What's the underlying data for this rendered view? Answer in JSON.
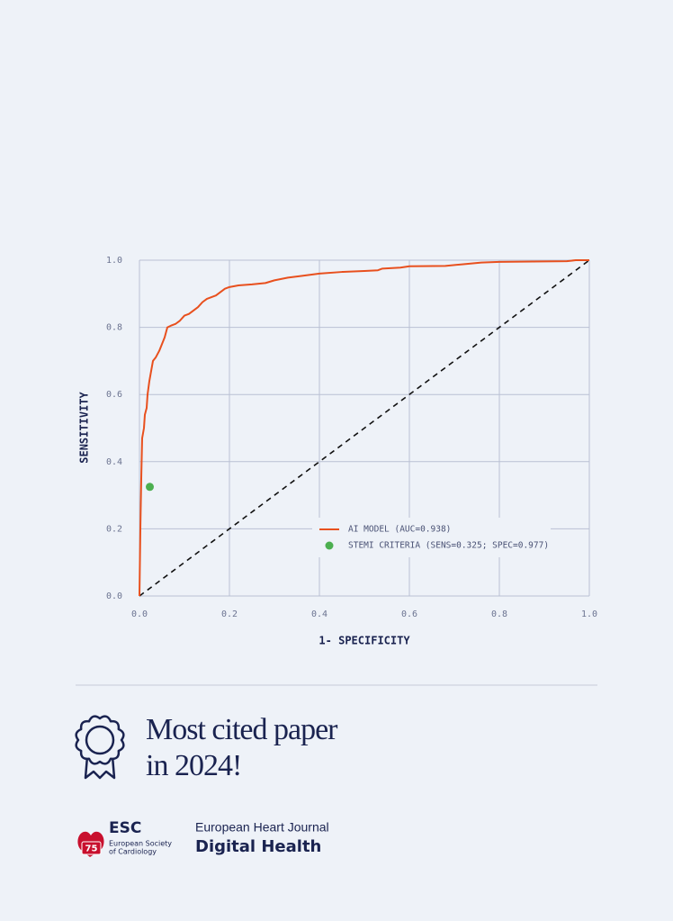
{
  "chart_data": {
    "type": "line",
    "x_label": "1- SPECIFICITY",
    "y_label": "SENSITIVITY",
    "xlim": [
      0,
      1
    ],
    "ylim": [
      0,
      1
    ],
    "xticks": [
      {
        "value": 0,
        "label": "0.0"
      },
      {
        "value": 0.2,
        "label": "0.2"
      },
      {
        "value": 0.4,
        "label": "0.4"
      },
      {
        "value": 0.6,
        "label": "0.6"
      },
      {
        "value": 0.8,
        "label": "0.8"
      },
      {
        "value": 1,
        "label": "1.0"
      }
    ],
    "yticks": [
      {
        "value": 0,
        "label": "0.0"
      },
      {
        "value": 0.2,
        "label": "0.2"
      },
      {
        "value": 0.4,
        "label": "0.4"
      },
      {
        "value": 0.6,
        "label": "0.6"
      },
      {
        "value": 0.8,
        "label": "0.8"
      },
      {
        "value": 1,
        "label": "1.0"
      }
    ],
    "grid": true,
    "legend": "lower right",
    "diagonal": true,
    "series": [
      {
        "name": "AI MODEL (AUC=0.938)",
        "color": "#e8501e",
        "type": "line",
        "x": [
          0,
          0.002,
          0.004,
          0.006,
          0.01,
          0.012,
          0.016,
          0.018,
          0.022,
          0.026,
          0.03,
          0.036,
          0.044,
          0.05,
          0.056,
          0.062,
          0.07,
          0.08,
          0.09,
          0.1,
          0.11,
          0.12,
          0.13,
          0.14,
          0.15,
          0.16,
          0.17,
          0.18,
          0.19,
          0.2,
          0.22,
          0.25,
          0.28,
          0.3,
          0.33,
          0.36,
          0.4,
          0.45,
          0.5,
          0.53,
          0.54,
          0.58,
          0.6,
          0.68,
          0.72,
          0.76,
          0.8,
          0.95,
          0.97,
          1
        ],
        "values": [
          0,
          0.2,
          0.35,
          0.47,
          0.5,
          0.54,
          0.56,
          0.6,
          0.64,
          0.67,
          0.7,
          0.71,
          0.73,
          0.75,
          0.77,
          0.8,
          0.805,
          0.81,
          0.82,
          0.835,
          0.84,
          0.85,
          0.86,
          0.875,
          0.885,
          0.89,
          0.895,
          0.905,
          0.915,
          0.92,
          0.925,
          0.928,
          0.932,
          0.94,
          0.948,
          0.953,
          0.96,
          0.965,
          0.968,
          0.97,
          0.975,
          0.978,
          0.982,
          0.983,
          0.988,
          0.993,
          0.995,
          0.997,
          1,
          1
        ]
      },
      {
        "name": "STEMI CRITERIA (SENS=0.325; SPEC=0.977)",
        "color": "#4caf50",
        "type": "scatter",
        "x": [
          0.023
        ],
        "values": [
          0.325
        ]
      }
    ]
  },
  "award": {
    "lines": [
      "Most cited paper",
      "in 2024!"
    ]
  },
  "logos": {
    "esc": {
      "badge": "75",
      "name": "ESC",
      "lines": [
        "European Society",
        "of Cardiology"
      ]
    },
    "journal": {
      "name": "European Heart Journal",
      "subtitle": "Digital Health"
    }
  }
}
